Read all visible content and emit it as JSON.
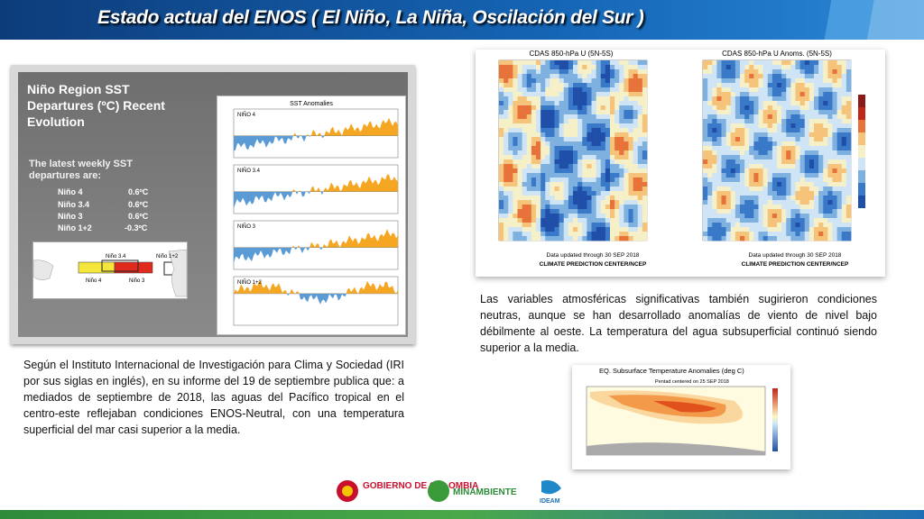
{
  "header": {
    "title": "Estado actual del ENOS ( El Niño, La Niña, Oscilación del Sur )"
  },
  "sst_figure": {
    "title": "Niño Region SST Departures (ºC) Recent Evolution",
    "subtitle": "The latest weekly SST departures are:",
    "rows": [
      [
        "Niño 4",
        "0.6ºC"
      ],
      [
        "Niño 3.4",
        "0.6ºC"
      ],
      [
        "Niño 3",
        "0.6ºC"
      ],
      [
        "Niño 1+2",
        "-0.3ºC"
      ]
    ],
    "map_labels": [
      "Niño 3.4",
      "Niño 1+2",
      "Niño 4",
      "Niño 3"
    ],
    "chart_title": "SST Anomalies",
    "panels": [
      "NIÑO 4",
      "NIÑO 3.4",
      "NIÑO 3",
      "NIÑO 1+2"
    ]
  },
  "left_text": "Según el Instituto Internacional de Investigación para Clima y Sociedad (IRI por sus siglas en inglés), en su informe del 19 de septiembre publica que: a mediados de septiembre de 2018, las aguas del Pacífico tropical en el centro-este reflejaban condiciones ENOS-Neutral, con una temperatura superficial del mar casi superior a la media.",
  "wind_figure": {
    "left_title": "CDAS 850-hPa U (5N-5S)",
    "right_title": "CDAS 850-hPa U Anoms. (5N-5S)",
    "note": "Data updated through 30 SEP 2018",
    "source": "CLIMATE PREDICTION CENTER/NCEP"
  },
  "right_text": "Las variables atmosféricas significativas también sugirieron condiciones neutras, aunque se han desarrollado anomalías de viento de nivel bajo débilmente al oeste. La temperatura del agua subsuperficial continuó siendo superior a la media.",
  "subsurface_figure": {
    "title": "EQ. Subsurface Temperature Anomalies (deg C)",
    "subtitle": "Pentad centered on 25 SEP 2018"
  },
  "footer": {
    "logos": [
      "GOBIERNO DE COLOMBIA",
      "MINAMBIENTE",
      "IDEAM"
    ]
  }
}
